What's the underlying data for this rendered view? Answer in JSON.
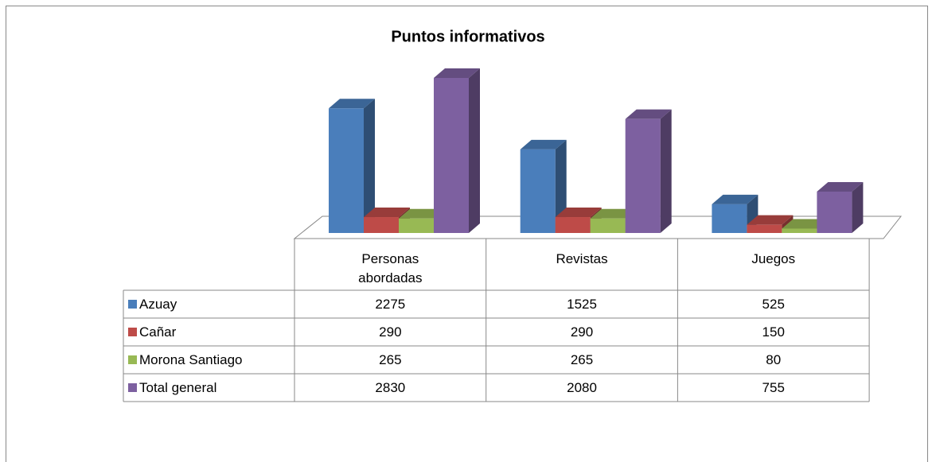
{
  "chart_data": {
    "type": "bar",
    "title": "Puntos informativos",
    "categories": [
      "Personas abordadas",
      "Revistas",
      "Juegos"
    ],
    "series": [
      {
        "name": "Azuay",
        "color": "#4a7ebb",
        "values": [
          2275,
          1525,
          525
        ]
      },
      {
        "name": "Cañar",
        "color": "#be4b48",
        "values": [
          290,
          290,
          150
        ]
      },
      {
        "name": "Morona Santiago",
        "color": "#98b954",
        "values": [
          265,
          265,
          80
        ]
      },
      {
        "name": "Total general",
        "color": "#7d60a0",
        "values": [
          2830,
          2080,
          755
        ]
      }
    ]
  }
}
